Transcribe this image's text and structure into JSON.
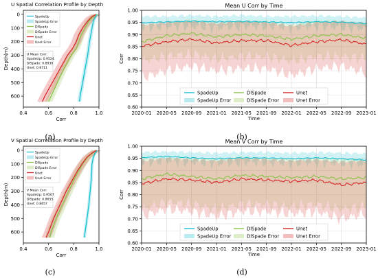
{
  "figure": {
    "captions": [
      "(a)",
      "(b)",
      "(c)",
      "(d)"
    ]
  },
  "chart_data": [
    {
      "id": "a",
      "type": "line",
      "title": "U Spatial Correlation Profile by Depth",
      "xlabel": "Corr",
      "ylabel": "Depth(m)",
      "xlim": [
        0.4,
        1.0
      ],
      "ylim": [
        680,
        -30
      ],
      "y_inverted": true,
      "xticks": [
        0.4,
        0.6,
        0.8,
        1.0
      ],
      "xtick_labels": [
        "0.4",
        "0.6",
        "0.8",
        "1.0"
      ],
      "yticks": [
        0,
        100,
        200,
        300,
        400,
        500,
        600
      ],
      "ytick_labels": [
        "0",
        "100",
        "200",
        "300",
        "400",
        "500",
        "600"
      ],
      "legend": [
        "SpadeUp",
        "SpadeUp Error",
        "DlSpade",
        "DlSpade Error",
        "Unet",
        "Unet Error"
      ],
      "legend_position": "top-left",
      "annotation": [
        "U Mean Corr:",
        "SpadeUp: 0.9524",
        "DlSpade: 0.8930",
        "Unet: 0.8711"
      ],
      "series": [
        {
          "name": "SpadeUp",
          "color": "#17becf",
          "depth": [
            0,
            20,
            50,
            100,
            150,
            200,
            300,
            400,
            500,
            600,
            640
          ],
          "corr": [
            0.985,
            0.97,
            0.955,
            0.945,
            0.935,
            0.925,
            0.91,
            0.89,
            0.87,
            0.85,
            0.845
          ],
          "band": 0.015
        },
        {
          "name": "DlSpade",
          "color": "#8bc34a",
          "depth": [
            0,
            20,
            50,
            100,
            150,
            200,
            250,
            300,
            400,
            500,
            600,
            640
          ],
          "corr": [
            0.98,
            0.95,
            0.92,
            0.89,
            0.86,
            0.84,
            0.82,
            0.78,
            0.72,
            0.67,
            0.62,
            0.6
          ],
          "band": 0.03
        },
        {
          "name": "Unet",
          "color": "#d62728",
          "depth": [
            0,
            20,
            50,
            100,
            150,
            200,
            250,
            300,
            400,
            500,
            600,
            640
          ],
          "corr": [
            0.975,
            0.94,
            0.91,
            0.87,
            0.84,
            0.82,
            0.79,
            0.75,
            0.69,
            0.63,
            0.57,
            0.55
          ],
          "band": 0.04
        }
      ]
    },
    {
      "id": "b",
      "type": "line",
      "title": "Mean U Corr by Time",
      "xlabel": "Time",
      "ylabel": "Corr",
      "xlim": [
        "2020-01",
        "2023-01"
      ],
      "ylim": [
        0.6,
        1.0
      ],
      "xtick_labels": [
        "2020-01",
        "2020-05",
        "2020-09",
        "2021-01",
        "2021-05",
        "2021-09",
        "2022-01",
        "2022-05",
        "2022-09",
        "2023-01"
      ],
      "yticks": [
        0.6,
        0.65,
        0.7,
        0.75,
        0.8,
        0.85,
        0.9,
        0.95,
        1.0
      ],
      "ytick_labels": [
        "0.60",
        "0.65",
        "0.70",
        "0.75",
        "0.80",
        "0.85",
        "0.90",
        "0.95",
        "1.00"
      ],
      "legend": [
        "SpadeUp",
        "DlSpade",
        "Unet",
        "SpadeUp Error",
        "DlSpade Error",
        "Unet Error"
      ],
      "legend_position": "lower-center",
      "grid": true,
      "series": [
        {
          "name": "SpadeUp",
          "color": "#17becf",
          "dates": [
            "2020-01",
            "2020-05",
            "2020-09",
            "2021-01",
            "2021-05",
            "2021-09",
            "2022-01",
            "2022-05",
            "2022-09",
            "2023-01"
          ],
          "mean": [
            0.948,
            0.952,
            0.955,
            0.953,
            0.954,
            0.952,
            0.949,
            0.953,
            0.951,
            0.945
          ],
          "error_low": [
            0.93,
            0.935,
            0.935,
            0.93,
            0.935,
            0.935,
            0.93,
            0.935,
            0.93,
            0.925
          ],
          "error_high": [
            0.975,
            0.975,
            0.98,
            0.975,
            0.98,
            0.975,
            0.975,
            0.978,
            0.975,
            0.97
          ]
        },
        {
          "name": "DlSpade",
          "color": "#8bc34a",
          "dates": [
            "2020-01",
            "2020-05",
            "2020-09",
            "2021-01",
            "2021-05",
            "2021-09",
            "2022-01",
            "2022-05",
            "2022-09",
            "2023-01"
          ],
          "mean": [
            0.87,
            0.895,
            0.905,
            0.89,
            0.9,
            0.895,
            0.88,
            0.895,
            0.9,
            0.885
          ],
          "error_low": [
            0.79,
            0.81,
            0.82,
            0.8,
            0.81,
            0.81,
            0.79,
            0.81,
            0.81,
            0.8
          ],
          "error_high": [
            0.94,
            0.95,
            0.96,
            0.95,
            0.955,
            0.955,
            0.94,
            0.955,
            0.955,
            0.945
          ]
        },
        {
          "name": "Unet",
          "color": "#d62728",
          "dates": [
            "2020-01",
            "2020-05",
            "2020-09",
            "2021-01",
            "2021-05",
            "2021-09",
            "2022-01",
            "2022-05",
            "2022-09",
            "2023-01"
          ],
          "mean": [
            0.852,
            0.87,
            0.88,
            0.865,
            0.875,
            0.875,
            0.855,
            0.87,
            0.878,
            0.86
          ],
          "error_low": [
            0.72,
            0.75,
            0.77,
            0.75,
            0.76,
            0.76,
            0.73,
            0.76,
            0.77,
            0.74
          ],
          "error_high": [
            0.94,
            0.95,
            0.955,
            0.945,
            0.955,
            0.95,
            0.935,
            0.95,
            0.955,
            0.945
          ]
        }
      ]
    },
    {
      "id": "c",
      "type": "line",
      "title": "V Spatial Correlation Profile by Depth",
      "xlabel": "Corr",
      "ylabel": "Depth(m)",
      "xlim": [
        0.4,
        1.0
      ],
      "ylim": [
        680,
        -30
      ],
      "y_inverted": true,
      "xticks": [
        0.4,
        0.6,
        0.8,
        1.0
      ],
      "xtick_labels": [
        "0.4",
        "0.6",
        "0.8",
        "1.0"
      ],
      "yticks": [
        0,
        100,
        200,
        300,
        400,
        500,
        600
      ],
      "ytick_labels": [
        "0",
        "100",
        "200",
        "300",
        "400",
        "500",
        "600"
      ],
      "legend": [
        "SpadeUp",
        "SpadeUp Error",
        "DlSpade",
        "DlSpade Error",
        "Unet",
        "Unet Error"
      ],
      "legend_position": "top-left",
      "annotation": [
        "V Mean Corr:",
        "SpadeUp: 0.9507",
        "DlSpade: 0.8655",
        "Unet: 0.8657"
      ],
      "series": [
        {
          "name": "SpadeUp",
          "color": "#17becf",
          "depth": [
            0,
            20,
            50,
            100,
            200,
            300,
            400,
            500,
            600,
            640
          ],
          "corr": [
            0.985,
            0.97,
            0.955,
            0.945,
            0.94,
            0.93,
            0.92,
            0.905,
            0.89,
            0.885
          ],
          "band": 0.012
        },
        {
          "name": "DlSpade",
          "color": "#8bc34a",
          "depth": [
            0,
            20,
            50,
            100,
            150,
            200,
            300,
            400,
            500,
            600,
            640
          ],
          "corr": [
            0.98,
            0.95,
            0.91,
            0.87,
            0.84,
            0.81,
            0.76,
            0.71,
            0.66,
            0.62,
            0.61
          ],
          "band": 0.035
        },
        {
          "name": "Unet",
          "color": "#d62728",
          "depth": [
            0,
            20,
            50,
            100,
            150,
            200,
            300,
            400,
            500,
            600,
            640
          ],
          "corr": [
            0.98,
            0.945,
            0.905,
            0.865,
            0.83,
            0.8,
            0.74,
            0.69,
            0.64,
            0.6,
            0.58
          ],
          "band": 0.035
        }
      ]
    },
    {
      "id": "d",
      "type": "line",
      "title": "Mean V Corr by Time",
      "xlabel": "Time",
      "ylabel": "Corr",
      "xlim": [
        "2020-01",
        "2023-01"
      ],
      "ylim": [
        0.6,
        1.0
      ],
      "xtick_labels": [
        "2020-01",
        "2020-05",
        "2020-09",
        "2021-01",
        "2021-05",
        "2021-09",
        "2022-01",
        "2022-05",
        "2022-09",
        "2023-01"
      ],
      "yticks": [
        0.6,
        0.65,
        0.7,
        0.75,
        0.8,
        0.85,
        0.9,
        0.95,
        1.0
      ],
      "ytick_labels": [
        "0.60",
        "0.65",
        "0.70",
        "0.75",
        "0.80",
        "0.85",
        "0.90",
        "0.95",
        "1.00"
      ],
      "legend": [
        "SpadeUp",
        "DlSpade",
        "Unet",
        "SpadeUp Error",
        "DlSpade Error",
        "Unet Error"
      ],
      "legend_position": "lower-center",
      "grid": true,
      "series": [
        {
          "name": "SpadeUp",
          "color": "#17becf",
          "dates": [
            "2020-01",
            "2020-05",
            "2020-09",
            "2021-01",
            "2021-05",
            "2021-09",
            "2022-01",
            "2022-05",
            "2022-09",
            "2023-01"
          ],
          "mean": [
            0.953,
            0.958,
            0.952,
            0.948,
            0.952,
            0.951,
            0.948,
            0.952,
            0.948,
            0.943
          ],
          "error_low": [
            0.935,
            0.94,
            0.935,
            0.93,
            0.935,
            0.935,
            0.93,
            0.935,
            0.93,
            0.925
          ],
          "error_high": [
            0.975,
            0.978,
            0.975,
            0.972,
            0.975,
            0.975,
            0.972,
            0.975,
            0.972,
            0.97
          ]
        },
        {
          "name": "DlSpade",
          "color": "#8bc34a",
          "dates": [
            "2020-01",
            "2020-05",
            "2020-09",
            "2021-01",
            "2021-05",
            "2021-09",
            "2022-01",
            "2022-05",
            "2022-09",
            "2023-01"
          ],
          "mean": [
            0.865,
            0.885,
            0.875,
            0.865,
            0.88,
            0.875,
            0.87,
            0.875,
            0.865,
            0.87
          ],
          "error_low": [
            0.74,
            0.77,
            0.76,
            0.74,
            0.76,
            0.76,
            0.75,
            0.76,
            0.74,
            0.75
          ],
          "error_high": [
            0.945,
            0.955,
            0.95,
            0.945,
            0.955,
            0.95,
            0.945,
            0.95,
            0.945,
            0.945
          ]
        },
        {
          "name": "Unet",
          "color": "#d62728",
          "dates": [
            "2020-01",
            "2020-05",
            "2020-09",
            "2021-01",
            "2021-05",
            "2021-09",
            "2022-01",
            "2022-05",
            "2022-09",
            "2023-01"
          ],
          "mean": [
            0.845,
            0.865,
            0.86,
            0.85,
            0.865,
            0.86,
            0.855,
            0.86,
            0.84,
            0.85
          ],
          "error_low": [
            0.71,
            0.74,
            0.73,
            0.71,
            0.73,
            0.73,
            0.72,
            0.73,
            0.7,
            0.72
          ],
          "error_high": [
            0.94,
            0.95,
            0.945,
            0.94,
            0.95,
            0.945,
            0.94,
            0.945,
            0.935,
            0.94
          ]
        }
      ]
    }
  ]
}
